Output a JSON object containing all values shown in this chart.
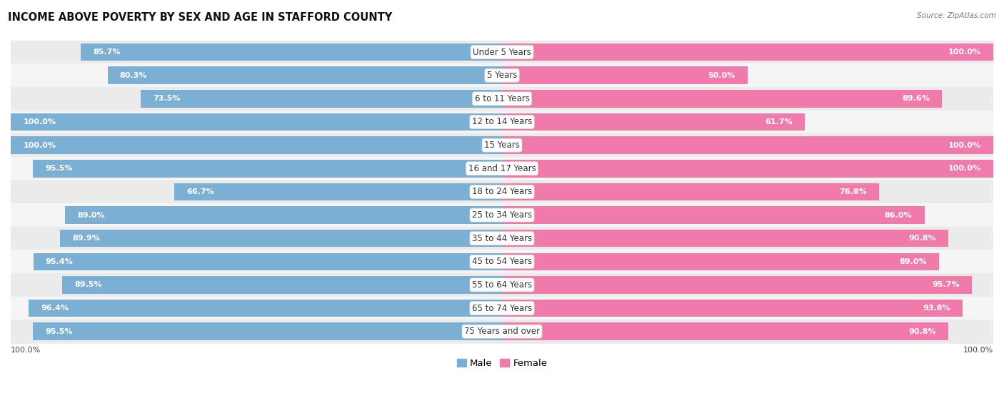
{
  "title": "INCOME ABOVE POVERTY BY SEX AND AGE IN STAFFORD COUNTY",
  "source": "Source: ZipAtlas.com",
  "categories": [
    "Under 5 Years",
    "5 Years",
    "6 to 11 Years",
    "12 to 14 Years",
    "15 Years",
    "16 and 17 Years",
    "18 to 24 Years",
    "25 to 34 Years",
    "35 to 44 Years",
    "45 to 54 Years",
    "55 to 64 Years",
    "65 to 74 Years",
    "75 Years and over"
  ],
  "male_values": [
    85.7,
    80.3,
    73.5,
    100.0,
    100.0,
    95.5,
    66.7,
    89.0,
    89.9,
    95.4,
    89.5,
    96.4,
    95.5
  ],
  "female_values": [
    100.0,
    50.0,
    89.6,
    61.7,
    100.0,
    100.0,
    76.8,
    86.0,
    90.8,
    89.0,
    95.7,
    93.8,
    90.8
  ],
  "male_color": "#7bafd4",
  "female_color": "#f07aaa",
  "male_light_color": "#b8d4ea",
  "female_light_color": "#f9c0d5",
  "male_label": "Male",
  "female_label": "Female",
  "title_fontsize": 10.5,
  "label_fontsize": 8.5,
  "value_fontsize": 8.0,
  "source_fontsize": 7.5
}
